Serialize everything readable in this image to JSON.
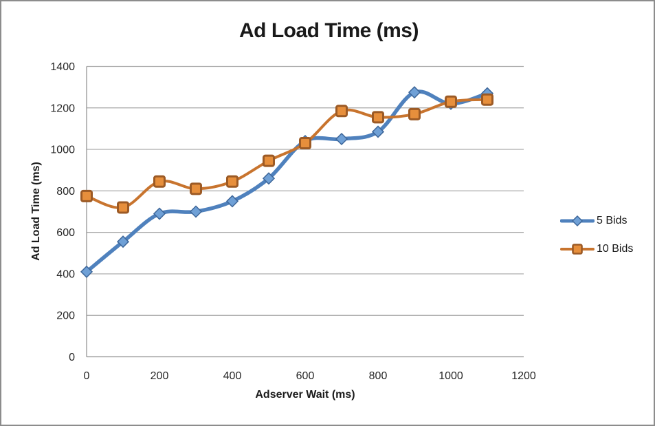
{
  "chart_data": {
    "type": "line",
    "title": "Ad Load Time (ms)",
    "xlabel": "Adserver Wait (ms)",
    "ylabel": "Ad Load Time (ms)",
    "x": [
      0,
      100,
      200,
      300,
      400,
      500,
      600,
      700,
      800,
      900,
      1000,
      1100
    ],
    "series": [
      {
        "name": "5 Bids",
        "marker": "diamond",
        "color": "#4F81BD",
        "marker_fill": "#6FA0D6",
        "marker_stroke": "#3D6699",
        "line_width": 5.5,
        "values": [
          410,
          555,
          690,
          700,
          750,
          860,
          1040,
          1050,
          1085,
          1275,
          1220,
          1270
        ]
      },
      {
        "name": "10 Bids",
        "marker": "square",
        "color": "#C8742E",
        "marker_fill": "#E78F3C",
        "marker_stroke": "#9C5A25",
        "line_width": 4,
        "values": [
          775,
          720,
          845,
          810,
          845,
          945,
          1030,
          1185,
          1155,
          1170,
          1230,
          1240
        ]
      }
    ],
    "xlim": [
      0,
      1200
    ],
    "ylim": [
      0,
      1400
    ],
    "x_ticks": [
      0,
      200,
      400,
      600,
      800,
      1000,
      1200
    ],
    "y_ticks": [
      0,
      200,
      400,
      600,
      800,
      1000,
      1200,
      1400
    ],
    "grid": "horizontal",
    "legend_position": "right",
    "smooth": true
  },
  "colors": {
    "gridline": "#A6A6A6",
    "axis_line": "#8C8C8C",
    "text": "#1A1A1A",
    "page_border": "#8C8C8C"
  }
}
